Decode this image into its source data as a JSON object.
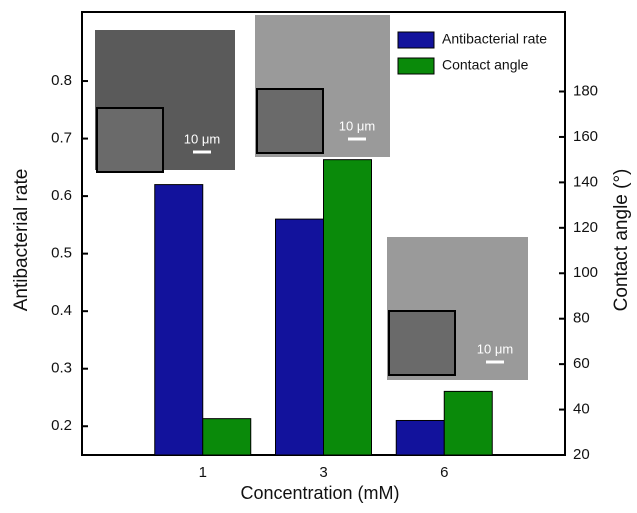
{
  "chart_data": {
    "type": "bar",
    "categories": [
      "1",
      "3",
      "6"
    ],
    "series": [
      {
        "name": "Antibacterial rate",
        "color": "#12129c",
        "values": [
          0.62,
          0.56,
          0.21
        ]
      },
      {
        "name": "Contact angle",
        "color": "#0a8a0a",
        "values": [
          36,
          150,
          48
        ],
        "axis": "y2"
      }
    ],
    "xlabel": "Concentration (mM)",
    "ylabel": "Antibacterial rate",
    "y2label": "Contact angle (°)",
    "ylim": [
      0.15,
      0.92
    ],
    "yticks": [
      0.2,
      0.3,
      0.4,
      0.5,
      0.6,
      0.7,
      0.8
    ],
    "y2lim": [
      20,
      215
    ],
    "y2ticks": [
      20,
      40,
      60,
      80,
      100,
      120,
      140,
      160,
      180
    ],
    "annotations": [
      "10 μm",
      "10 μm",
      "10 μm"
    ],
    "legend": "top-right"
  }
}
